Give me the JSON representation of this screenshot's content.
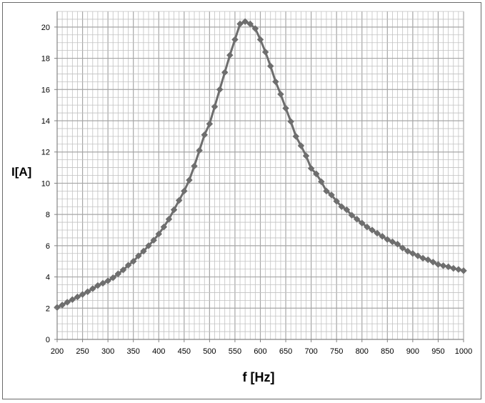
{
  "chart_data": {
    "type": "line",
    "xlabel": "f [Hz]",
    "ylabel": "I[A]",
    "xlim": [
      200,
      1000
    ],
    "ylim": [
      0,
      21
    ],
    "x_ticks": [
      200,
      250,
      300,
      350,
      400,
      450,
      500,
      550,
      600,
      650,
      700,
      750,
      800,
      850,
      900,
      950,
      1000
    ],
    "y_ticks": [
      0,
      2,
      4,
      6,
      8,
      10,
      12,
      14,
      16,
      18,
      20
    ],
    "grid": true,
    "legend": "none",
    "marker": "diamond",
    "series": [
      {
        "color": "#6e6e6e",
        "x": [
          200,
          210,
          220,
          230,
          240,
          250,
          260,
          270,
          280,
          290,
          300,
          310,
          320,
          330,
          340,
          350,
          360,
          370,
          380,
          390,
          400,
          410,
          420,
          430,
          440,
          450,
          460,
          470,
          480,
          490,
          500,
          510,
          520,
          530,
          540,
          550,
          560,
          570,
          580,
          590,
          600,
          610,
          620,
          630,
          640,
          650,
          660,
          670,
          680,
          690,
          700,
          710,
          720,
          730,
          740,
          750,
          760,
          770,
          780,
          790,
          800,
          810,
          820,
          830,
          840,
          850,
          860,
          870,
          880,
          890,
          900,
          910,
          920,
          930,
          940,
          950,
          960,
          970,
          980,
          990,
          1000
        ],
        "y": [
          2.05,
          2.2,
          2.38,
          2.55,
          2.72,
          2.88,
          3.05,
          3.25,
          3.45,
          3.6,
          3.75,
          3.95,
          4.2,
          4.45,
          4.75,
          5.0,
          5.35,
          5.65,
          6.0,
          6.35,
          6.75,
          7.2,
          7.7,
          8.3,
          8.9,
          9.5,
          10.2,
          11.1,
          12.1,
          13.1,
          13.8,
          14.9,
          16.0,
          17.1,
          18.2,
          19.2,
          20.2,
          20.35,
          20.2,
          19.9,
          19.2,
          18.4,
          17.5,
          16.5,
          15.7,
          14.8,
          13.95,
          13.0,
          12.4,
          11.75,
          10.95,
          10.6,
          10.1,
          9.5,
          9.25,
          8.85,
          8.5,
          8.3,
          7.95,
          7.7,
          7.45,
          7.2,
          7.0,
          6.8,
          6.6,
          6.4,
          6.25,
          6.1,
          5.85,
          5.65,
          5.5,
          5.35,
          5.2,
          5.1,
          4.95,
          4.8,
          4.72,
          4.65,
          4.55,
          4.48,
          4.4
        ]
      }
    ]
  }
}
